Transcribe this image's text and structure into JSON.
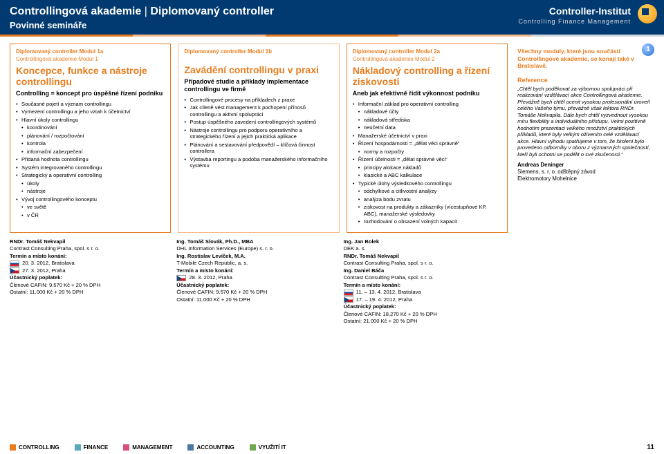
{
  "header": {
    "title_a": "Controllingová akademie",
    "title_b": "Diplomovaný controller",
    "subtitle": "Povinné semináře",
    "brand": "Controller-Institut",
    "brand_sub": "Controlling  Finance  Management"
  },
  "accent_bar_colors": [
    "#e87c1e",
    "#f4b98a",
    "#e87c1e",
    "#f4b98a",
    "#cfd6dc"
  ],
  "columns": [
    {
      "tag": "Diplomovaný controller Modul 1a",
      "subtag": "Controllingová akademie Modul 1",
      "title": "Koncepce, funkce a nástroje controllingu",
      "subtitle": "Controlling = koncept pro úspěšné řízení podniku",
      "items": [
        {
          "t": "Současné pojetí a význam controllingu"
        },
        {
          "t": "Vymezení controllingu a jeho vztah k účetnictví"
        },
        {
          "t": "Hlavní úkoly controllingu"
        },
        {
          "t": "koordinování",
          "sub": true
        },
        {
          "t": "plánování / rozpočtování",
          "sub": true
        },
        {
          "t": "kontrola",
          "sub": true
        },
        {
          "t": "informační zabezpečení",
          "sub": true
        },
        {
          "t": "Přidaná hodnota controllingu"
        },
        {
          "t": "Systém integrovaného controllingu"
        },
        {
          "t": "Strategický a operativní controlling"
        },
        {
          "t": "úkoly",
          "sub": true
        },
        {
          "t": "nástroje",
          "sub": true
        },
        {
          "t": "Vývoj controllingového konceptu"
        },
        {
          "t": "ve světě",
          "sub": true
        },
        {
          "t": "v ČR",
          "sub": true
        }
      ]
    },
    {
      "tag": "Diplomovaný controller Modul 1b",
      "subtag": "",
      "title": "Zavádění controllingu v praxi",
      "subtitle": "Případové studie a příklady implementace controllingu ve firmě",
      "items": [
        {
          "t": "Controllingové procesy na příkladech z praxe"
        },
        {
          "t": "Jak cíleně vést management k pochopení přínosů controllingu a aktivní spolupráci"
        },
        {
          "t": "Postup úspěšného zavedení controllingových systémů"
        },
        {
          "t": "Nástroje controllingu pro podporu operativního a strategického řízení a jejich praktická aplikace"
        },
        {
          "t": "Plánování a sestavování předpovědí – klíčová činnost controllera"
        },
        {
          "t": "Výstavba reportingu a podoba manažerského informačního systému"
        }
      ]
    },
    {
      "tag": "Diplomovaný controller Modul 2a",
      "subtag": "Controllingová akademie Modul 2",
      "title": "Nákladový controlling a řízení ziskovosti",
      "subtitle": "Aneb jak efektivně řídit výkonnost podniku",
      "items": [
        {
          "t": "Informační základ pro operativní controlling"
        },
        {
          "t": "nákladové účty",
          "sub": true
        },
        {
          "t": "nákladová střediska",
          "sub": true
        },
        {
          "t": "neúčetní data",
          "sub": true
        },
        {
          "t": "Manažerské účetnictví v praxi"
        },
        {
          "t": "Řízení hospodárnosti = „dělat věci správně“"
        },
        {
          "t": "normy a rozpočty",
          "sub": true
        },
        {
          "t": "Řízení účelnosti = „dělat správné věci“"
        },
        {
          "t": "principy alokace nákladů",
          "sub": true
        },
        {
          "t": "klasické a ABC kalkulace",
          "sub": true
        },
        {
          "t": "Typické úlohy výsledkového controllingu"
        },
        {
          "t": "odchylkové a citlivostní analýzy",
          "sub": true
        },
        {
          "t": "analýza bodu zvratu",
          "sub": true
        },
        {
          "t": "ziskovost na produkty a zákazníky (vícestupňové KP, ABC), manažerské výsledovky",
          "sub": true
        },
        {
          "t": "rozhodování o obsazení volných kapacit",
          "sub": true
        }
      ]
    }
  ],
  "info": {
    "badge": "1",
    "intro": "Všechny moduly, které jsou součástí Controllingové akademie, se konají také v Bratislavě.",
    "ref_title": "Reference",
    "ref_text": "„Chtěl bych poděkovat za výbornou spolupráci při realizování vzdělávací akce Controllingová akademie. Převážně bych chtěl ocenit vysokou profesionální úroveň celého Vašeho týmu, převážně však lektora RNDr. Tomáše Nekvapila. Dále bych chtěl vyzvednout vysokou míru flexibility a individuálního přístupu. Velmi pozitivně hodnotím prezentaci velkého množství praktických příkladů, které byly velkým oživením celé vzdělávací akce. Hlavní výhodu spatřujeme v tom, že školení bylo provedeno odborníky v oboru z významných společností, kteří byli ochotni se podělit o své zkušenosti.“",
    "sig_name": "Andreas Deninger",
    "sig_line2": "Siemens, s. r. o. odštěpný závod",
    "sig_line3": "Elektromotory Mohelnice"
  },
  "bottom": [
    {
      "people": [
        {
          "name": "RNDr. Tomáš Nekvapil",
          "org": "Contrast Consulting Praha, spol. s r. o."
        }
      ],
      "venue_label": "Termín a místo konání:",
      "dates": [
        {
          "flag": "sk",
          "text": "20. 3. 2012, Bratislava"
        },
        {
          "flag": "cz",
          "text": "27. 3. 2012, Praha"
        }
      ],
      "fee_label": "Účastnický poplatek:",
      "fee1": "Členové CAFIN: 9.570 Kč + 20 % DPH",
      "fee2": "Ostatní: 11.000 Kč + 20 % DPH"
    },
    {
      "people": [
        {
          "name": "Ing. Tomáš Slovák, Ph.D., MBA",
          "org": "DHL Information Services (Europe) s. r. o."
        },
        {
          "name": "Ing. Rostislav Levíček, M.A.",
          "org": "T-Mobile Czech Republic, a. s."
        }
      ],
      "venue_label": "Termín a místo konání:",
      "dates": [
        {
          "flag": "cz",
          "text": "28. 3. 2012, Praha"
        }
      ],
      "fee_label": "Účastnický poplatek:",
      "fee1": "Členové CAFIN: 9.570 Kč + 20 % DPH",
      "fee2": "Ostatní: 11.000 Kč + 20 % DPH"
    },
    {
      "people": [
        {
          "name": "Ing. Jan Bolek",
          "org": "DEK a. s."
        },
        {
          "name": "RNDr. Tomáš Nekvapil",
          "org": "Contrast Consulting Praha, spol. s r. o."
        },
        {
          "name": "Ing. Daniel Báča",
          "org": "Contrast Consulting Praha, spol. s r. o."
        }
      ],
      "venue_label": "Termín a místo konání:",
      "dates": [
        {
          "flag": "sk",
          "text": "11. – 13. 4. 2012, Bratislava"
        },
        {
          "flag": "cz",
          "text": "17. – 19. 4. 2012, Praha"
        }
      ],
      "fee_label": "Účastnický poplatek:",
      "fee1": "Členové CAFIN: 18.270 Kč + 20 % DPH",
      "fee2": "Ostatní: 21.000 Kč + 20 % DPH"
    }
  ],
  "footer": {
    "items": [
      {
        "label": "CONTROLLING",
        "color": "#e87c1e"
      },
      {
        "label": "FINANCE",
        "color": "#5aa9b8"
      },
      {
        "label": "MANAGEMENT",
        "color": "#d94f7a"
      },
      {
        "label": "ACCOUNTING",
        "color": "#4a78a5"
      },
      {
        "label": "VYUŽITÍ IT",
        "color": "#6fa84f"
      }
    ],
    "page": "11"
  }
}
